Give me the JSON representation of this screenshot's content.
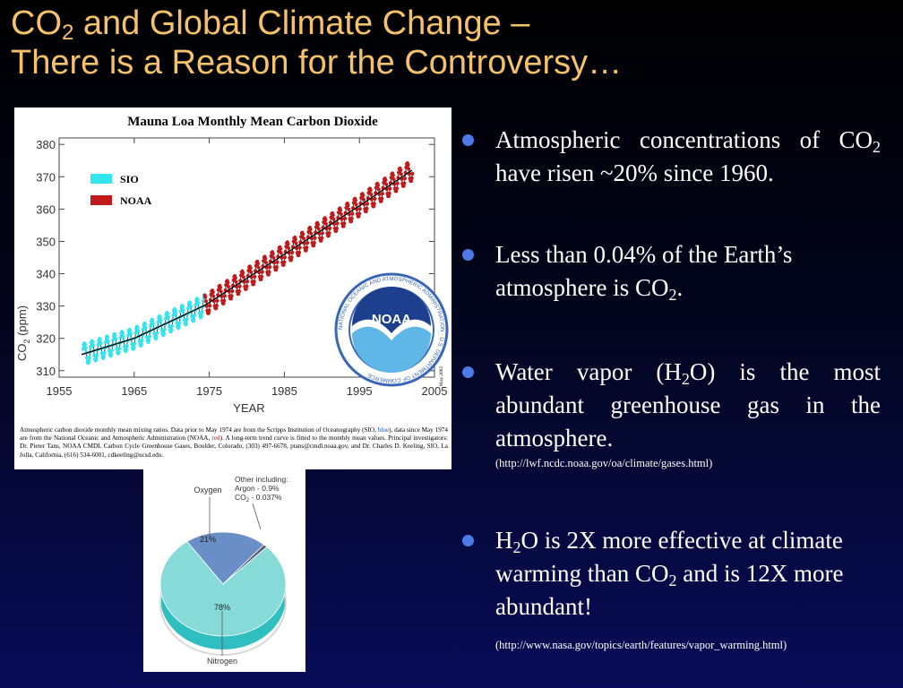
{
  "slide": {
    "title_line1_pre": "CO",
    "title_line1_sub": "2",
    "title_line1_post": " and Global Climate Change –",
    "title_line2": "There is a Reason for the Controversy…"
  },
  "colors": {
    "title": "#f5c26b",
    "bullet_dot": "#4a7be8",
    "sio": "#33e5ee",
    "noaa": "#c01a1a",
    "pie_nitrogen": "#86dad8",
    "pie_oxygen": "#6a8fc6",
    "pie_other": "#5a5a70"
  },
  "chart_data": [
    {
      "type": "scatter",
      "title": "Mauna Loa Monthly Mean Carbon Dioxide",
      "xlabel": "YEAR",
      "ylabel_pre": "CO",
      "ylabel_sub": "2",
      "ylabel_post": " (ppm)",
      "xlim": [
        1955,
        2005
      ],
      "ylim": [
        308,
        382
      ],
      "x_ticks": [
        "1955",
        "1965",
        "1975",
        "1985",
        "1995",
        "2005"
      ],
      "y_ticks": [
        "310",
        "320",
        "330",
        "340",
        "350",
        "360",
        "370",
        "380"
      ],
      "series": [
        {
          "name": "SIO",
          "x_start": 1958.2,
          "x_end": 1974.4,
          "trend": [
            [
              1958,
              315.0
            ],
            [
              1965,
              320.0
            ],
            [
              1974.4,
              330.2
            ]
          ],
          "seasonal_amplitude_ppm": 3.2
        },
        {
          "name": "NOAA",
          "x_start": 1974.4,
          "x_end": 2002.1,
          "trend": [
            [
              1974.4,
              330.2
            ],
            [
              1985,
              346.0
            ],
            [
              1995,
              361.0
            ],
            [
              2002,
              372.0
            ]
          ],
          "seasonal_amplitude_ppm": 3.2
        }
      ],
      "side_text": "May 2002",
      "caption": {
        "part1": "Atmospheric carbon dioxide monthly mean mixing ratios. Data prior to May 1974 are from the Scripps Institution of Oceanography (SIO, ",
        "blue": "blue",
        "part2": "), data since May 1974 are from the National Oceanic and Atmospheric Administration (NOAA, ",
        "red": "red",
        "part3": "). A long-term trend curve is fitted to the monthly mean values. Principal investigators: Dr. Pieter Tans, NOAA CMDL Carbon Cycle Greenhouse Gases, Boulder, Colorado, (303) 497-6678, ptans@cmdl.noaa.gov, and Dr. Charles D. Keeling, SIO, La Jolla, California, (616) 534-6001, cdkeeling@ucsd.edu."
      },
      "logo": {
        "name": "NOAA",
        "ring_text": "NATIONAL OCEANIC AND ATMOSPHERIC ADMINISTRATION · U.S. DEPARTMENT OF COMMERCE"
      }
    },
    {
      "type": "pie",
      "slices": [
        {
          "name": "Nitrogen",
          "label": "78%",
          "value": 78
        },
        {
          "name": "Oxygen",
          "label": "21%",
          "value": 21
        },
        {
          "name": "Other",
          "value": 1
        }
      ],
      "other_label": "Other including:",
      "other_argon": "Argon - 0.9%",
      "other_co2_pre": "CO",
      "other_co2_sub": "2",
      "other_co2_post": " - 0.037%"
    }
  ],
  "bullets": [
    {
      "pre": "Atmospheric concentrations of CO",
      "sub": "2",
      "post": " have risen ~20% since 1960."
    },
    {
      "pre": "Less than 0.04% of the Earth’s atmosphere is CO",
      "sub": "2",
      "post": "."
    },
    {
      "pre": "Water vapor (H",
      "sub": "2",
      "post": "O) is the most abundant greenhouse gas in the atmosphere.",
      "source": "(http://lwf.ncdc.noaa.gov/oa/climate/gases.html)"
    },
    {
      "pre": "H",
      "sub": "2",
      "mid": "O is 2X more effective at climate warming than CO",
      "sub2": "2",
      "post": " and is 12X more abundant!",
      "source": "(http://www.nasa.gov/topics/earth/features/vapor_warming.html)"
    }
  ]
}
